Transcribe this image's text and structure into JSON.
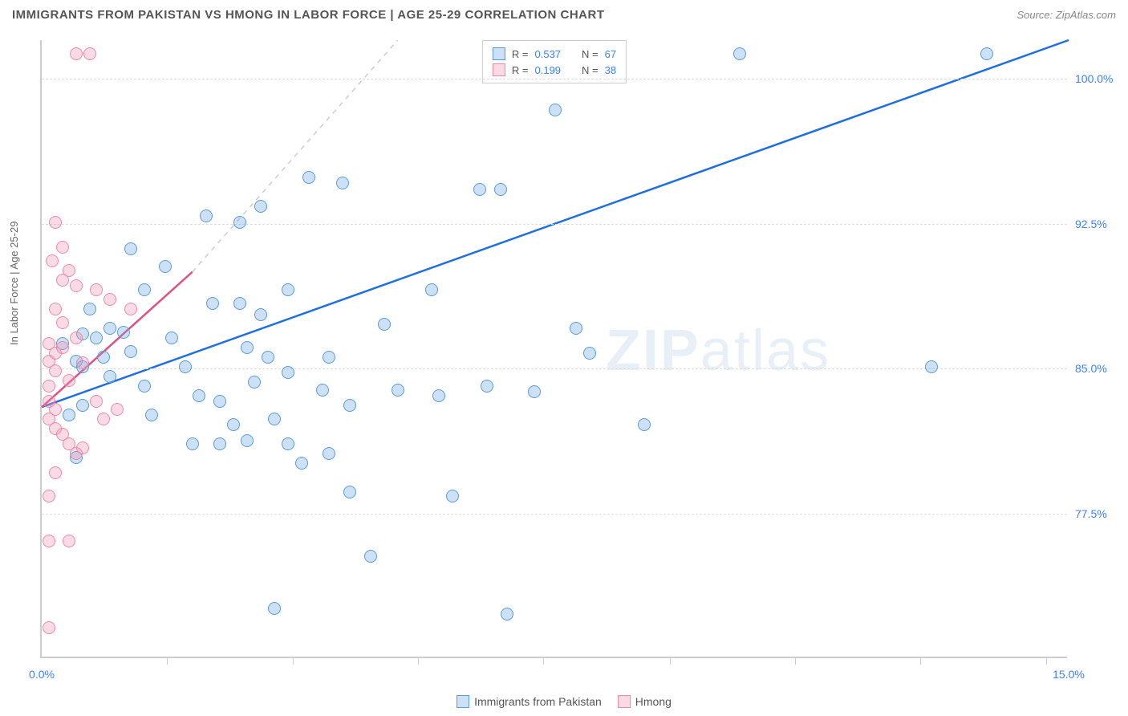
{
  "title": "IMMIGRANTS FROM PAKISTAN VS HMONG IN LABOR FORCE | AGE 25-29 CORRELATION CHART",
  "source_prefix": "Source: ",
  "source": "ZipAtlas.com",
  "yaxis_label": "In Labor Force | Age 25-29",
  "watermark_a": "ZIP",
  "watermark_b": "atlas",
  "chart": {
    "type": "scatter",
    "xlim": [
      0,
      15
    ],
    "ylim": [
      70,
      102
    ],
    "ytick_values": [
      77.5,
      85.0,
      92.5,
      100.0
    ],
    "ytick_labels": [
      "77.5%",
      "85.0%",
      "92.5%",
      "100.0%"
    ],
    "xtick_values": [
      1.83,
      3.67,
      5.5,
      7.33,
      9.17,
      11.0,
      12.83,
      14.67
    ],
    "xaxis_end_labels": {
      "left": "0.0%",
      "right": "15.0%"
    },
    "grid_color": "#dddddd",
    "axis_color": "#cccccc",
    "background_color": "#ffffff",
    "point_radius": 8,
    "point_stroke_width": 1.5,
    "series": [
      {
        "name": "Immigrants from Pakistan",
        "fill": "rgba(110,170,230,0.35)",
        "stroke": "#5b9bd5",
        "trend_stroke": "#1f6fe0",
        "trend_width": 2.5,
        "trend": {
          "x1": 0,
          "y1": 83.0,
          "x2": 15,
          "y2": 102.0
        },
        "R": "0.537",
        "N": "67",
        "points": [
          [
            13.8,
            101.2
          ],
          [
            10.2,
            101.2
          ],
          [
            7.5,
            98.3
          ],
          [
            6.4,
            94.2
          ],
          [
            6.7,
            94.2
          ],
          [
            4.4,
            94.5
          ],
          [
            3.9,
            94.8
          ],
          [
            3.2,
            93.3
          ],
          [
            2.9,
            92.5
          ],
          [
            2.4,
            92.8
          ],
          [
            1.3,
            91.1
          ],
          [
            1.8,
            90.2
          ],
          [
            1.5,
            89.0
          ],
          [
            2.5,
            88.3
          ],
          [
            2.9,
            88.3
          ],
          [
            3.2,
            87.7
          ],
          [
            3.6,
            89.0
          ],
          [
            3.0,
            86.0
          ],
          [
            3.3,
            85.5
          ],
          [
            4.2,
            85.5
          ],
          [
            1.9,
            86.5
          ],
          [
            2.1,
            85.0
          ],
          [
            1.3,
            85.8
          ],
          [
            1.0,
            84.5
          ],
          [
            1.5,
            84.0
          ],
          [
            2.3,
            83.5
          ],
          [
            2.6,
            83.2
          ],
          [
            3.1,
            84.2
          ],
          [
            3.6,
            84.7
          ],
          [
            4.1,
            83.8
          ],
          [
            4.5,
            83.0
          ],
          [
            5.2,
            83.8
          ],
          [
            5.8,
            83.5
          ],
          [
            6.5,
            84.0
          ],
          [
            7.2,
            83.7
          ],
          [
            2.8,
            82.0
          ],
          [
            3.4,
            82.3
          ],
          [
            2.2,
            81.0
          ],
          [
            2.6,
            81.0
          ],
          [
            3.0,
            81.2
          ],
          [
            3.6,
            81.0
          ],
          [
            4.2,
            80.5
          ],
          [
            5.0,
            87.2
          ],
          [
            5.7,
            89.0
          ],
          [
            7.8,
            87.0
          ],
          [
            8.8,
            82.0
          ],
          [
            8.0,
            85.7
          ],
          [
            13.0,
            85.0
          ],
          [
            4.5,
            78.5
          ],
          [
            6.0,
            78.3
          ],
          [
            4.8,
            75.2
          ],
          [
            3.4,
            72.5
          ],
          [
            6.8,
            72.2
          ],
          [
            3.8,
            80.0
          ],
          [
            1.6,
            82.5
          ],
          [
            0.9,
            85.5
          ],
          [
            0.8,
            86.5
          ],
          [
            0.6,
            83.0
          ],
          [
            1.0,
            87.0
          ],
          [
            0.5,
            85.3
          ],
          [
            0.6,
            85.0
          ],
          [
            1.2,
            86.8
          ],
          [
            0.3,
            86.2
          ],
          [
            0.4,
            82.5
          ],
          [
            0.5,
            80.3
          ],
          [
            0.7,
            88.0
          ],
          [
            0.6,
            86.7
          ]
        ]
      },
      {
        "name": "Hmong",
        "fill": "rgba(240,150,180,0.35)",
        "stroke": "#e88ca8",
        "trend_stroke": "#e05080",
        "trend_width": 2.5,
        "trend": {
          "x1": 0,
          "y1": 83.0,
          "x2": 2.2,
          "y2": 90.0
        },
        "trend_dashed_ext": {
          "x1": 2.2,
          "y1": 90.0,
          "x2": 5.2,
          "y2": 102.0
        },
        "R": "0.199",
        "N": "38",
        "points": [
          [
            0.5,
            101.2
          ],
          [
            0.7,
            101.2
          ],
          [
            0.2,
            92.5
          ],
          [
            0.3,
            91.2
          ],
          [
            0.4,
            90.0
          ],
          [
            0.3,
            89.5
          ],
          [
            0.5,
            89.2
          ],
          [
            0.8,
            89.0
          ],
          [
            1.0,
            88.5
          ],
          [
            1.3,
            88.0
          ],
          [
            0.2,
            88.0
          ],
          [
            0.3,
            87.3
          ],
          [
            0.5,
            86.5
          ],
          [
            0.1,
            86.2
          ],
          [
            0.2,
            85.7
          ],
          [
            0.1,
            85.3
          ],
          [
            0.2,
            84.8
          ],
          [
            0.1,
            84.0
          ],
          [
            0.1,
            83.2
          ],
          [
            0.2,
            82.8
          ],
          [
            0.1,
            82.3
          ],
          [
            0.2,
            81.8
          ],
          [
            0.3,
            81.5
          ],
          [
            0.4,
            81.0
          ],
          [
            0.5,
            80.5
          ],
          [
            0.6,
            80.8
          ],
          [
            0.8,
            83.2
          ],
          [
            0.9,
            82.3
          ],
          [
            1.1,
            82.8
          ],
          [
            0.2,
            79.5
          ],
          [
            0.1,
            78.3
          ],
          [
            0.1,
            76.0
          ],
          [
            0.4,
            76.0
          ],
          [
            0.1,
            71.5
          ],
          [
            0.3,
            86.0
          ],
          [
            0.6,
            85.2
          ],
          [
            0.15,
            90.5
          ],
          [
            0.4,
            84.3
          ]
        ]
      }
    ]
  },
  "legend_bottom": [
    {
      "label": "Immigrants from Pakistan",
      "fill": "rgba(110,170,230,0.35)",
      "stroke": "#5b9bd5"
    },
    {
      "label": "Hmong",
      "fill": "rgba(240,150,180,0.35)",
      "stroke": "#e88ca8"
    }
  ],
  "legend_top_labels": {
    "R": "R =",
    "N": "N ="
  }
}
